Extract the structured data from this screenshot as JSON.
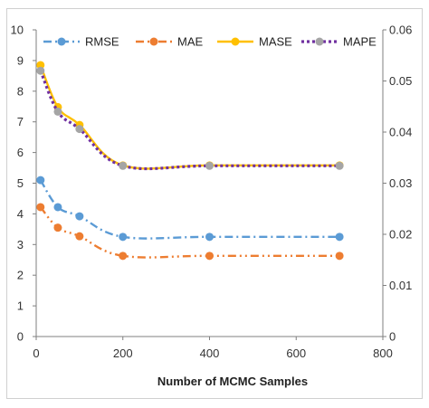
{
  "chart_data": {
    "type": "line",
    "xlabel": "Number of MCMC Samples",
    "ylabel": "",
    "y2label": "",
    "xlim": [
      0,
      800
    ],
    "ylim": [
      0,
      10
    ],
    "y2lim": [
      0,
      0.06
    ],
    "xticks": [
      0,
      200,
      400,
      600,
      800
    ],
    "yticks": [
      0,
      1,
      2,
      3,
      4,
      5,
      6,
      7,
      8,
      9,
      10
    ],
    "y2ticks": [
      0,
      0.01,
      0.02,
      0.03,
      0.04,
      0.05,
      0.06
    ],
    "grid": false,
    "legend_position": "top",
    "series": [
      {
        "name": "RMSE",
        "axis": "left",
        "color": "#5B9BD5",
        "style": "dashdot",
        "x": [
          10,
          50,
          100,
          200,
          400,
          700
        ],
        "y": [
          5.1,
          4.22,
          3.92,
          3.25,
          3.25,
          3.25
        ]
      },
      {
        "name": "MAE",
        "axis": "left",
        "color": "#ED7D31",
        "style": "dashdotdot",
        "x": [
          10,
          50,
          100,
          200,
          400,
          700
        ],
        "y": [
          4.22,
          3.55,
          3.27,
          2.63,
          2.63,
          2.63
        ]
      },
      {
        "name": "MASE",
        "axis": "left",
        "color": "#FFC000",
        "style": "solid",
        "x": [
          10,
          50,
          100,
          200,
          400,
          700
        ],
        "y": [
          8.85,
          7.48,
          6.9,
          5.58,
          5.58,
          5.58
        ]
      },
      {
        "name": "MAPE",
        "axis": "right",
        "color": "#7030A0",
        "style": "dotted",
        "x": [
          10,
          50,
          100,
          200,
          400,
          700
        ],
        "y": [
          0.052,
          0.044,
          0.0406,
          0.0334,
          0.0334,
          0.0334
        ]
      }
    ]
  }
}
